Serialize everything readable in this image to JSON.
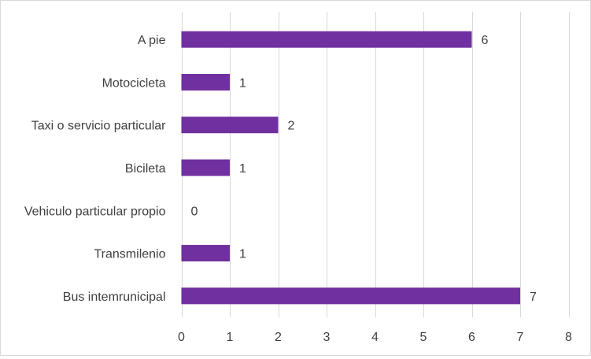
{
  "chart_data": {
    "type": "bar",
    "orientation": "horizontal",
    "title": "",
    "xlabel": "",
    "ylabel": "",
    "categories": [
      "A pie",
      "Motocicleta",
      "Taxi o servicio particular",
      "Bicileta",
      "Vehiculo particular propio",
      "Transmilenio",
      "Bus intemrunicipal"
    ],
    "values": [
      6,
      1,
      2,
      1,
      0,
      1,
      7
    ],
    "xlim": [
      0,
      8
    ],
    "xticks": [
      0,
      1,
      2,
      3,
      4,
      5,
      6,
      7,
      8
    ],
    "grid": "vertical",
    "legend": "none",
    "data_labels": true,
    "bar_color": "#7030a0",
    "grid_color": "#d9d9d9"
  }
}
